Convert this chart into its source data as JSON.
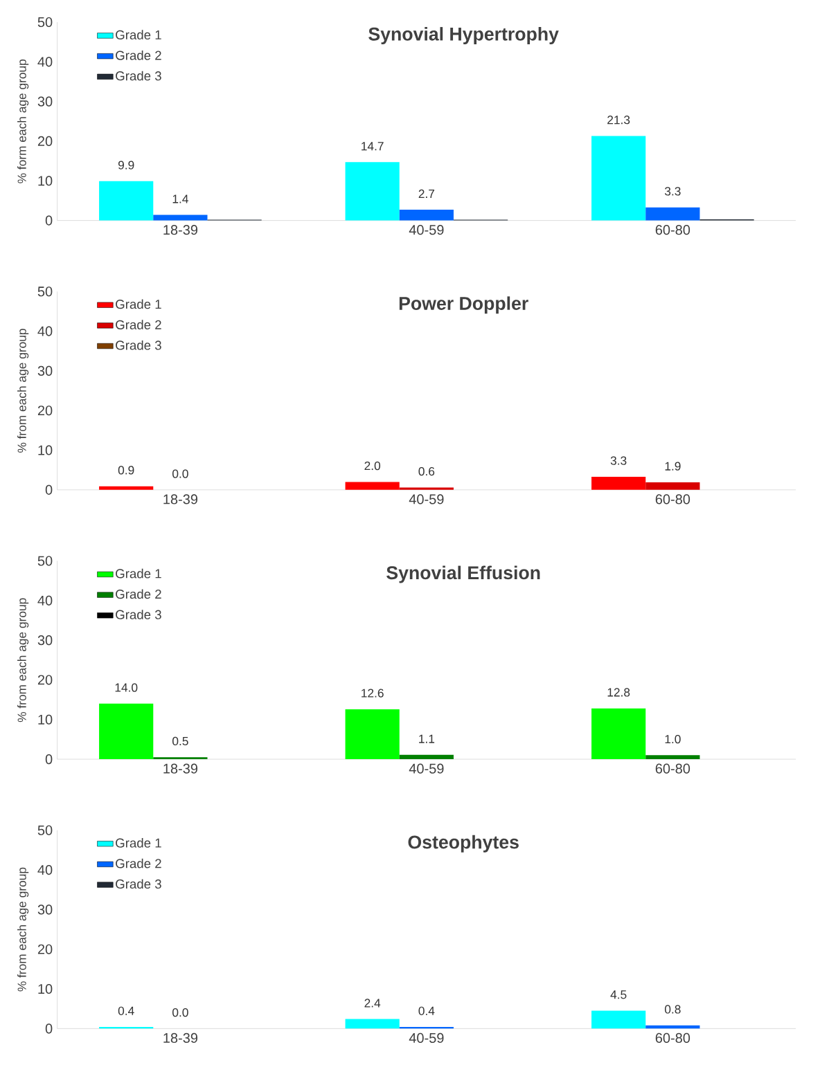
{
  "chart_data": [
    {
      "type": "bar",
      "title": "Synovial Hypertrophy",
      "ylabel": "% form each age group",
      "categories": [
        "18-39",
        "40-59",
        "60-80"
      ],
      "ylim": [
        0,
        50
      ],
      "yticks": [
        0,
        10,
        20,
        30,
        40,
        50
      ],
      "legend": "top left",
      "series": [
        {
          "name": "Grade 1",
          "color": "#00ffff",
          "values": [
            9.9,
            14.7,
            21.3
          ],
          "value_labels": [
            "9.9",
            "14.7",
            "21.3"
          ]
        },
        {
          "name": "Grade 2",
          "color": "#0066ff",
          "values": [
            1.4,
            2.7,
            3.3
          ],
          "value_labels": [
            "1.4",
            "2.7",
            "3.3"
          ]
        },
        {
          "name": "Grade 3",
          "color": "#222a35",
          "values": [
            0.2,
            0.2,
            0.3
          ]
        }
      ]
    },
    {
      "type": "bar",
      "title": "Power Doppler",
      "ylabel": "% from each age group",
      "categories": [
        "18-39",
        "40-59",
        "60-80"
      ],
      "ylim": [
        0,
        50
      ],
      "yticks": [
        0,
        10,
        20,
        30,
        40,
        50
      ],
      "legend": "top left",
      "series": [
        {
          "name": "Grade 1",
          "color": "#ff0000",
          "values": [
            0.9,
            2.0,
            3.3
          ],
          "value_labels": [
            "0.9",
            "2.0",
            "3.3"
          ]
        },
        {
          "name": "Grade 2",
          "color": "#d90000",
          "values": [
            0.0,
            0.6,
            1.9
          ],
          "value_labels": [
            "0.0",
            "0.6",
            "1.9"
          ]
        },
        {
          "name": "Grade 3",
          "color": "#7f3f00",
          "values": [
            0,
            0,
            0
          ]
        }
      ]
    },
    {
      "type": "bar",
      "title": "Synovial Effusion",
      "ylabel": "% from each age group",
      "categories": [
        "18-39",
        "40-59",
        "60-80"
      ],
      "ylim": [
        0,
        50
      ],
      "yticks": [
        0,
        10,
        20,
        30,
        40,
        50
      ],
      "legend": "top left",
      "series": [
        {
          "name": "Grade 1",
          "color": "#00ff00",
          "values": [
            14.0,
            12.6,
            12.8
          ],
          "value_labels": [
            "14.0",
            "12.6",
            "12.8"
          ]
        },
        {
          "name": "Grade 2",
          "color": "#008000",
          "values": [
            0.5,
            1.1,
            1.0
          ],
          "value_labels": [
            "0.5",
            "1.1",
            "1.0"
          ]
        },
        {
          "name": "Grade 3",
          "color": "#000000",
          "values": [
            0,
            0,
            0
          ]
        }
      ]
    },
    {
      "type": "bar",
      "title": "Osteophytes",
      "ylabel": "% from each age group",
      "categories": [
        "18-39",
        "40-59",
        "60-80"
      ],
      "ylim": [
        0,
        50
      ],
      "yticks": [
        0,
        10,
        20,
        30,
        40,
        50
      ],
      "legend": "top left",
      "series": [
        {
          "name": "Grade 1",
          "color": "#00ffff",
          "values": [
            0.4,
            2.4,
            4.5
          ],
          "value_labels": [
            "0.4",
            "2.4",
            "4.5"
          ]
        },
        {
          "name": "Grade 2",
          "color": "#0066ff",
          "values": [
            0.0,
            0.4,
            0.8
          ],
          "value_labels": [
            "0.0",
            "0.4",
            "0.8"
          ]
        },
        {
          "name": "Grade 3",
          "color": "#222a35",
          "values": [
            0,
            0,
            0
          ]
        }
      ]
    }
  ]
}
